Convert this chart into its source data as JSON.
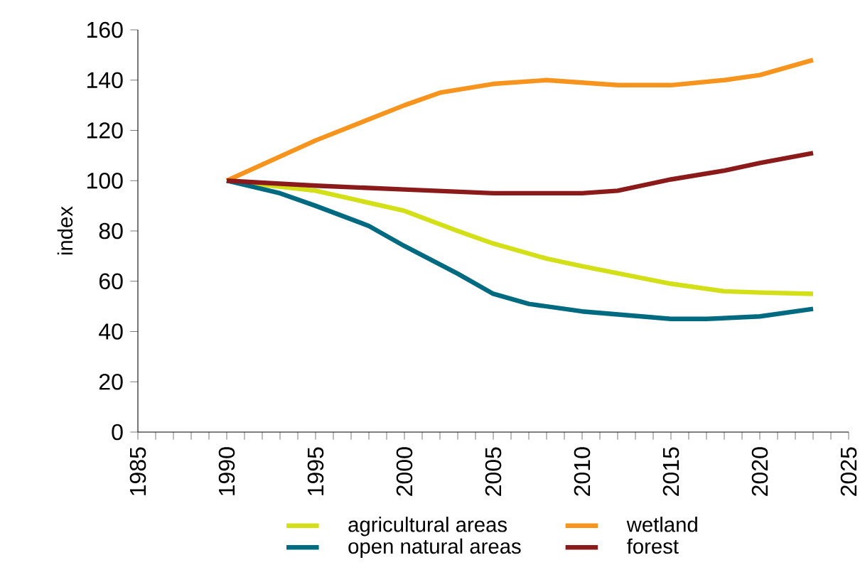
{
  "chart_data": {
    "type": "line",
    "ylabel": "index",
    "xlim": [
      1985,
      2025
    ],
    "xticks": [
      1985,
      1990,
      1995,
      2000,
      2005,
      2010,
      2015,
      2020,
      2025
    ],
    "ylim": [
      0,
      160
    ],
    "yticks": [
      0,
      20,
      40,
      60,
      80,
      100,
      120,
      140,
      160
    ],
    "grid": false,
    "legend": "bottom",
    "marker": "none",
    "line_style": "solid",
    "series": [
      {
        "name": "agricultural areas",
        "color": "#d4e017",
        "x": [
          1990,
          1995,
          2000,
          2003,
          2005,
          2008,
          2010,
          2015,
          2018,
          2020,
          2023
        ],
        "values": [
          100,
          96,
          88,
          80,
          75,
          69,
          66,
          59,
          56,
          55.5,
          55
        ]
      },
      {
        "name": "wetland",
        "color": "#f7941d",
        "x": [
          1990,
          1995,
          2000,
          2002,
          2005,
          2008,
          2010,
          2012,
          2015,
          2018,
          2020,
          2023
        ],
        "values": [
          100,
          116,
          130,
          135,
          138.5,
          140,
          139,
          138,
          138,
          140,
          142,
          148
        ]
      },
      {
        "name": "open natural areas",
        "color": "#006a80",
        "x": [
          1990,
          1993,
          1995,
          1998,
          2000,
          2003,
          2005,
          2007,
          2010,
          2015,
          2017,
          2020,
          2023
        ],
        "values": [
          100,
          95,
          90,
          82,
          74,
          63,
          55,
          51,
          48,
          45,
          45,
          46,
          49
        ]
      },
      {
        "name": "forest",
        "color": "#8b1a1a",
        "x": [
          1990,
          1995,
          2000,
          2005,
          2010,
          2012,
          2015,
          2018,
          2020,
          2023
        ],
        "values": [
          100,
          98,
          96.5,
          95,
          95,
          96,
          100.5,
          104,
          107,
          111
        ]
      }
    ]
  }
}
